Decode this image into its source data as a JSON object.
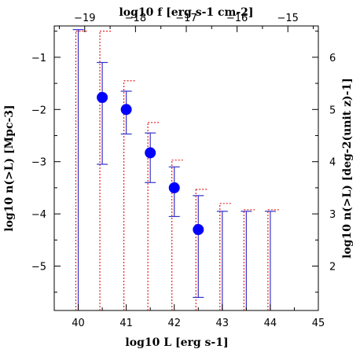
{
  "chart_data": {
    "type": "scatter",
    "title": "",
    "xlabel": "log10 L [erg s-1]",
    "ylabel": "log10 n(>L) [Mpc-3]",
    "top_xlabel": "log10 f [erg s-1 cm-2]",
    "right_ylabel": "log10 n(>L) [deg-2(unit z)-1]",
    "xlim": [
      39.5,
      45
    ],
    "ylim": [
      -5.85,
      -0.4
    ],
    "top_xlim": [
      -19.6,
      -14.4
    ],
    "right_ylim": [
      1.15,
      6.6
    ],
    "x_ticks": [
      "40",
      "41",
      "42",
      "43",
      "44",
      "45"
    ],
    "y_ticks": [
      "-1",
      "-2",
      "-3",
      "-4",
      "-5"
    ],
    "top_ticks": [
      "-19",
      "-18",
      "-17",
      "-16",
      "-15"
    ],
    "right_ticks": [
      "2",
      "3",
      "4",
      "5",
      "6"
    ],
    "grid": false,
    "colors": {
      "points": "#0000ff",
      "errorbars": "#3333cc",
      "limits": "#ee2222",
      "axes": "#000000"
    },
    "series": [
      {
        "marker": "filled-circle",
        "x": [
          40.5,
          41.0,
          41.5,
          42.0,
          42.5
        ],
        "y": [
          -1.77,
          -2.0,
          -2.83,
          -3.5,
          -4.3
        ],
        "y_low": [
          -3.05,
          -2.47,
          -3.4,
          -4.05,
          -5.6
        ],
        "y_high": [
          -1.1,
          -1.65,
          -2.45,
          -3.1,
          -3.65
        ]
      },
      {
        "marker": "error-bar-no-point",
        "x": [
          40.0,
          43.0,
          43.5,
          44.0
        ],
        "y_low": [
          -5.85,
          -5.85,
          -5.85,
          -5.85
        ],
        "y_high": [
          -0.47,
          -3.95,
          -3.95,
          -3.95
        ]
      },
      {
        "marker": "dotted-upper-limit",
        "x": [
          39.95,
          40.45,
          40.95,
          41.45,
          41.95,
          42.45,
          42.95,
          43.45,
          43.95
        ],
        "y_high": [
          -0.5,
          -0.5,
          -1.45,
          -2.25,
          -2.97,
          -3.53,
          -3.8,
          -3.92,
          -3.92
        ]
      }
    ]
  }
}
